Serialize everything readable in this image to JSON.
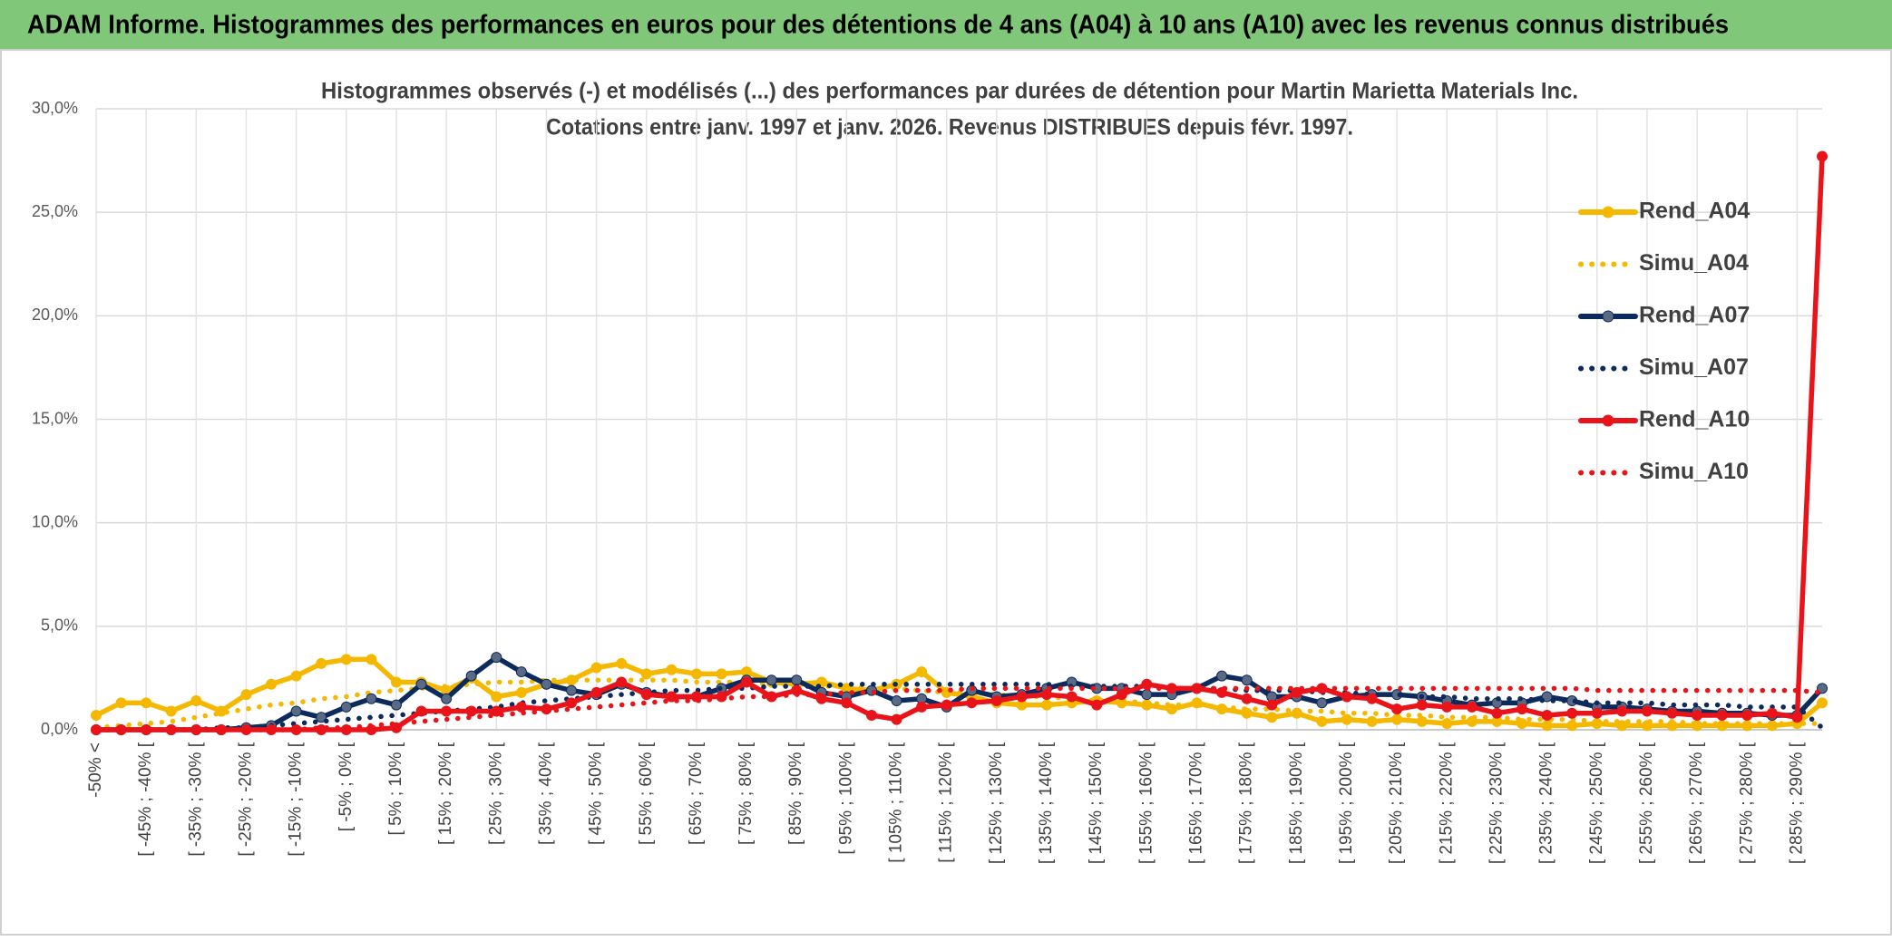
{
  "header": {
    "title": "ADAM Informe. Histogrammes des performances en euros pour des détentions de 4 ans (A04) à 10 ans (A10) avec les revenus connus distribués"
  },
  "chart_data": {
    "type": "line",
    "title": "Histogrammes observés (-) et modélisés (...) des performances par durées de détention pour Martin Marietta Materials Inc.",
    "subtitle": "Cotations entre janv. 1997 et janv. 2026. Revenus DISTRIBUES depuis févr. 1997.",
    "categories": [
      "-50% <",
      null,
      "[ -45% ; -40% [",
      null,
      "[ -35% ; -30% [",
      null,
      "[ -25% ; -20% [",
      null,
      "[ -15% ; -10% [",
      null,
      "[ -5% ; 0% [",
      null,
      "[ 5% ; 10% [",
      null,
      "[ 15% ; 20% [",
      null,
      "[ 25% ; 30% [",
      null,
      "[ 35% ; 40% [",
      null,
      "[ 45% ; 50% [",
      null,
      "[ 55% ; 60% [",
      null,
      "[ 65% ; 70% [",
      null,
      "[ 75% ; 80% [",
      null,
      "[ 85% ; 90% [",
      null,
      "[ 95% ; 100% [",
      null,
      "[ 105% ; 110% [",
      null,
      "[ 115% ; 120% [",
      null,
      "[ 125% ; 130% [",
      null,
      "[ 135% ; 140% [",
      null,
      "[ 145% ; 150% [",
      null,
      "[ 155% ; 160% [",
      null,
      "[ 165% ; 170% [",
      null,
      "[ 175% ; 180% [",
      null,
      "[ 185% ; 190% [",
      null,
      "[ 195% ; 200% [",
      null,
      "[ 205% ; 210% [",
      null,
      "[ 215% ; 220% [",
      null,
      "[ 225% ; 230% [",
      null,
      "[ 235% ; 240% [",
      null,
      "[ 245% ; 250% [",
      null,
      "[ 255% ; 260% [",
      null,
      "[ 265% ; 270% [",
      null,
      "[ 275% ; 280% [",
      null,
      "[ 285% ; 290% [",
      null
    ],
    "ylim": [
      0,
      30
    ],
    "yticks": [
      {
        "value": 0,
        "label": "0,0%"
      },
      {
        "value": 5,
        "label": "5,0%"
      },
      {
        "value": 10,
        "label": "10,0%"
      },
      {
        "value": 15,
        "label": "15,0%"
      },
      {
        "value": 20,
        "label": "20,0%"
      },
      {
        "value": 25,
        "label": "25,0%"
      },
      {
        "value": 30,
        "label": "30,0%"
      }
    ],
    "grid": true,
    "legend": "right",
    "series": [
      {
        "name": "Rend_A04",
        "color": "#f5b800",
        "line_style": "solid",
        "markers": true,
        "values": [
          0.7,
          1.3,
          1.3,
          0.9,
          1.4,
          0.9,
          1.7,
          2.2,
          2.6,
          3.2,
          3.4,
          3.4,
          2.3,
          2.3,
          1.9,
          2.5,
          1.6,
          1.8,
          2.2,
          2.4,
          3.0,
          3.2,
          2.7,
          2.9,
          2.7,
          2.7,
          2.8,
          2.3,
          2.2,
          2.3,
          2.0,
          1.9,
          2.2,
          2.8,
          1.8,
          1.6,
          1.3,
          1.2,
          1.2,
          1.3,
          1.4,
          1.3,
          1.2,
          1.0,
          1.3,
          1.0,
          0.8,
          0.6,
          0.8,
          0.4,
          0.5,
          0.4,
          0.5,
          0.4,
          0.3,
          0.4,
          0.4,
          0.3,
          0.2,
          0.2,
          0.3,
          0.2,
          0.2,
          0.2,
          0.2,
          0.2,
          0.2,
          0.2,
          0.3,
          1.3
        ]
      },
      {
        "name": "Simu_A04",
        "color": "#f5b800",
        "line_style": "dotted",
        "markers": false,
        "values": [
          0.1,
          0.2,
          0.3,
          0.4,
          0.6,
          0.8,
          1.0,
          1.2,
          1.3,
          1.5,
          1.6,
          1.8,
          1.9,
          2.0,
          2.1,
          2.2,
          2.3,
          2.3,
          2.4,
          2.4,
          2.4,
          2.4,
          2.4,
          2.4,
          2.3,
          2.3,
          2.3,
          2.2,
          2.2,
          2.1,
          2.1,
          2.0,
          2.0,
          1.9,
          1.8,
          1.8,
          1.7,
          1.6,
          1.6,
          1.5,
          1.4,
          1.4,
          1.3,
          1.2,
          1.2,
          1.1,
          1.0,
          1.0,
          0.9,
          0.9,
          0.8,
          0.8,
          0.7,
          0.7,
          0.6,
          0.6,
          0.6,
          0.5,
          0.5,
          0.5,
          0.4,
          0.4,
          0.4,
          0.4,
          0.3,
          0.3,
          0.3,
          0.3,
          0.3,
          0.3
        ]
      },
      {
        "name": "Rend_A07",
        "color": "#0d2a5c",
        "line_style": "solid",
        "markers": true,
        "values": [
          0,
          0,
          0,
          0,
          0,
          0,
          0.1,
          0.2,
          0.9,
          0.6,
          1.1,
          1.5,
          1.2,
          2.2,
          1.5,
          2.6,
          3.5,
          2.8,
          2.2,
          1.9,
          1.7,
          2.2,
          1.8,
          1.6,
          1.6,
          2.0,
          2.4,
          2.4,
          2.4,
          1.8,
          1.6,
          1.9,
          1.4,
          1.5,
          1.1,
          1.9,
          1.6,
          1.7,
          2.0,
          2.3,
          2.0,
          2.0,
          1.7,
          1.7,
          2.0,
          2.6,
          2.4,
          1.6,
          1.6,
          1.3,
          1.6,
          1.7,
          1.7,
          1.6,
          1.4,
          1.2,
          1.3,
          1.3,
          1.6,
          1.4,
          1.1,
          1.1,
          1.0,
          0.9,
          0.9,
          0.8,
          0.8,
          0.7,
          0.7,
          2.0
        ]
      },
      {
        "name": "Simu_A07",
        "color": "#0d2a5c",
        "line_style": "dotted",
        "markers": false,
        "values": [
          0,
          0,
          0,
          0,
          0,
          0.1,
          0.1,
          0.2,
          0.3,
          0.4,
          0.5,
          0.6,
          0.7,
          0.8,
          0.9,
          1.0,
          1.1,
          1.3,
          1.4,
          1.5,
          1.6,
          1.7,
          1.8,
          1.9,
          1.9,
          2.0,
          2.0,
          2.1,
          2.1,
          2.1,
          2.2,
          2.2,
          2.2,
          2.2,
          2.2,
          2.2,
          2.2,
          2.2,
          2.2,
          2.1,
          2.1,
          2.1,
          2.1,
          2.0,
          2.0,
          2.0,
          1.9,
          1.9,
          1.9,
          1.8,
          1.8,
          1.7,
          1.7,
          1.6,
          1.6,
          1.5,
          1.5,
          1.5,
          1.4,
          1.4,
          1.3,
          1.3,
          1.3,
          1.2,
          1.2,
          1.2,
          1.1,
          1.1,
          1.1,
          0.1
        ]
      },
      {
        "name": "Rend_A10",
        "color": "#e8141a",
        "line_style": "solid",
        "markers": true,
        "values": [
          0,
          0,
          0,
          0,
          0,
          0,
          0,
          0,
          0,
          0,
          0,
          0,
          0.1,
          0.9,
          0.9,
          0.9,
          0.9,
          1.1,
          1.0,
          1.3,
          1.8,
          2.3,
          1.7,
          1.6,
          1.6,
          1.6,
          2.3,
          1.6,
          1.9,
          1.5,
          1.3,
          0.7,
          0.5,
          1.1,
          1.2,
          1.3,
          1.4,
          1.6,
          1.7,
          1.6,
          1.2,
          1.7,
          2.2,
          2.0,
          2.0,
          1.8,
          1.5,
          1.2,
          1.8,
          2.0,
          1.6,
          1.5,
          1.0,
          1.2,
          1.1,
          1.1,
          0.8,
          1.0,
          0.7,
          0.8,
          0.8,
          0.9,
          0.9,
          0.8,
          0.7,
          0.7,
          0.7,
          0.8,
          0.6,
          27.7
        ]
      },
      {
        "name": "Simu_A10",
        "color": "#e8141a",
        "line_style": "dotted",
        "markers": false,
        "values": [
          0,
          0,
          0,
          0,
          0,
          0,
          0,
          0,
          0,
          0.1,
          0.1,
          0.2,
          0.3,
          0.4,
          0.5,
          0.6,
          0.7,
          0.8,
          0.9,
          1.0,
          1.1,
          1.2,
          1.3,
          1.4,
          1.4,
          1.5,
          1.6,
          1.6,
          1.7,
          1.7,
          1.8,
          1.8,
          1.9,
          1.9,
          1.9,
          2.0,
          2.0,
          2.0,
          2.0,
          2.0,
          2.0,
          2.0,
          2.0,
          2.0,
          2.0,
          2.0,
          2.0,
          2.0,
          2.0,
          2.0,
          2.0,
          2.0,
          2.0,
          2.0,
          2.0,
          2.0,
          2.0,
          2.0,
          2.0,
          2.0,
          1.9,
          1.9,
          1.9,
          1.9,
          1.9,
          1.9,
          1.9,
          1.9,
          1.9,
          1.8
        ]
      }
    ]
  }
}
